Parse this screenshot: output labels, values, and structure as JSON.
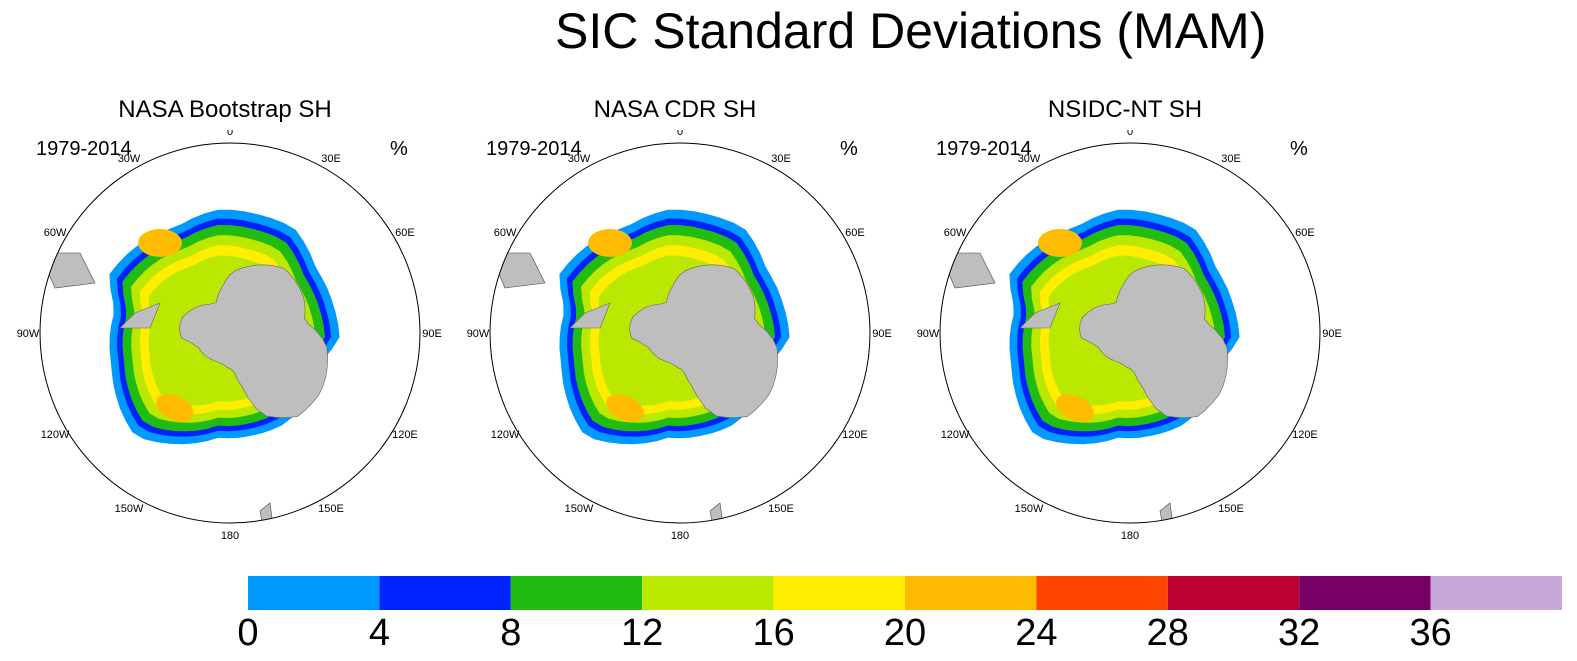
{
  "title": "SIC Standard Deviations (MAM)",
  "panels": [
    {
      "title": "NASA Bootstrap SH",
      "period": "1979-2014",
      "unit": "%"
    },
    {
      "title": "NASA CDR SH",
      "period": "1979-2014",
      "unit": "%"
    },
    {
      "title": "NSIDC-NT SH",
      "period": "1979-2014",
      "unit": "%"
    }
  ],
  "longitude_labels": [
    "0",
    "30E",
    "60E",
    "90E",
    "120E",
    "150E",
    "180",
    "150W",
    "120W",
    "90W",
    "60W",
    "30W"
  ],
  "colorbar": {
    "tick_labels": [
      "0",
      "4",
      "8",
      "12",
      "16",
      "20",
      "24",
      "28",
      "32",
      "36"
    ],
    "colors": [
      "#0099ff",
      "#0022ff",
      "#22bb11",
      "#bbe800",
      "#ffee00",
      "#ffbb00",
      "#ff4400",
      "#bb0033",
      "#770066",
      "#c8a8d8"
    ]
  },
  "land_color": "#bebebe"
}
